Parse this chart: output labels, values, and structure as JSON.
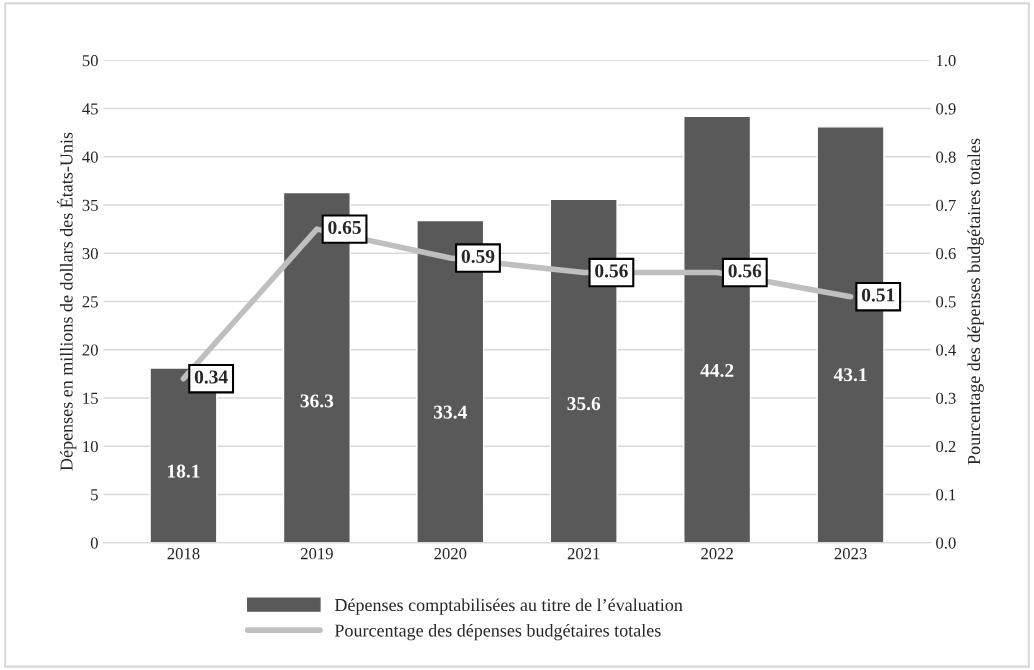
{
  "chart_data": {
    "type": "bar",
    "categories": [
      "2018",
      "2019",
      "2020",
      "2021",
      "2022",
      "2023"
    ],
    "ylabel": "Dépenses en millions de dollars des États-Unis",
    "y2label": "Pourcentage des dépenses budgétaires totales",
    "ylim": [
      0,
      50
    ],
    "yticks": [
      0,
      5,
      10,
      15,
      20,
      25,
      30,
      35,
      40,
      45,
      50
    ],
    "y2lim": [
      0,
      1.0
    ],
    "y2ticks": [
      {
        "value": 0,
        "label": "0.0"
      },
      {
        "value": 0.1,
        "label": "0.1"
      },
      {
        "value": 0.2,
        "label": "0.2"
      },
      {
        "value": 0.3,
        "label": "0.3"
      },
      {
        "value": 0.4,
        "label": "0.4"
      },
      {
        "value": 0.5,
        "label": "0.5"
      },
      {
        "value": 0.6,
        "label": "0.6"
      },
      {
        "value": 0.7,
        "label": "0.7"
      },
      {
        "value": 0.8,
        "label": "0.8"
      },
      {
        "value": 0.9,
        "label": "0.9"
      },
      {
        "value": 1.0,
        "label": "1.0"
      }
    ],
    "grid": "y",
    "legend": "bottom",
    "data_labels": true,
    "series": [
      {
        "name": "Dépenses comptabilisées au titre de l’évaluation",
        "color": "#595959",
        "values": [
          18.1,
          36.3,
          33.4,
          35.6,
          44.2,
          43.1
        ]
      },
      {
        "name": "Pourcentage des dépenses budgétaires totales",
        "type": "line",
        "axis": "y2",
        "color": "#bfbfbf",
        "values": [
          0.34,
          0.65,
          0.59,
          0.56,
          0.56,
          0.51
        ]
      }
    ]
  }
}
